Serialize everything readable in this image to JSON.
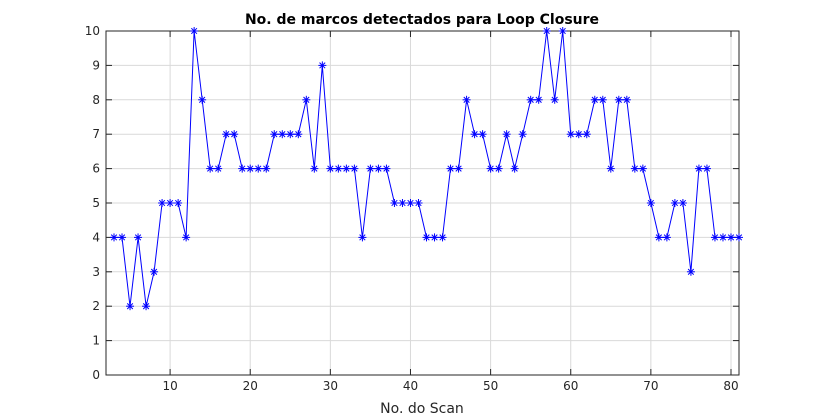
{
  "chart_data": {
    "type": "line",
    "title": "No. de marcos detectados para Loop Closure",
    "xlabel": "No. do Scan",
    "ylabel": "",
    "xlim": [
      2,
      81
    ],
    "ylim": [
      0,
      10
    ],
    "xticks": [
      10,
      20,
      30,
      40,
      50,
      60,
      70,
      80
    ],
    "yticks": [
      0,
      1,
      2,
      3,
      4,
      5,
      6,
      7,
      8,
      9,
      10
    ],
    "grid": true,
    "series": [
      {
        "color": "#0000ff",
        "marker": "asterisk",
        "x": [
          3,
          4,
          5,
          6,
          7,
          8,
          9,
          10,
          11,
          12,
          13,
          14,
          15,
          16,
          17,
          18,
          19,
          20,
          21,
          22,
          23,
          24,
          25,
          26,
          27,
          28,
          29,
          30,
          31,
          32,
          33,
          34,
          35,
          36,
          37,
          38,
          39,
          40,
          41,
          42,
          43,
          44,
          45,
          46,
          47,
          48,
          49,
          50,
          51,
          52,
          53,
          54,
          55,
          56,
          57,
          58,
          59,
          60,
          61,
          62,
          63,
          64,
          65,
          66,
          67,
          68,
          69,
          70,
          71,
          72,
          73,
          74,
          75,
          76,
          77,
          78,
          79,
          80,
          81
        ],
        "values": [
          4,
          4,
          2,
          4,
          2,
          3,
          5,
          5,
          5,
          4,
          10,
          8,
          6,
          6,
          7,
          7,
          6,
          6,
          6,
          6,
          7,
          7,
          7,
          7,
          8,
          6,
          9,
          6,
          6,
          6,
          6,
          4,
          6,
          6,
          6,
          5,
          5,
          5,
          5,
          4,
          4,
          4,
          6,
          6,
          8,
          7,
          7,
          6,
          6,
          7,
          6,
          7,
          8,
          8,
          10,
          8,
          10,
          7,
          7,
          7,
          8,
          8,
          6,
          8,
          8,
          6,
          6,
          5,
          4,
          4,
          5,
          5,
          3,
          6,
          6,
          4,
          4,
          4,
          4
        ]
      }
    ]
  }
}
